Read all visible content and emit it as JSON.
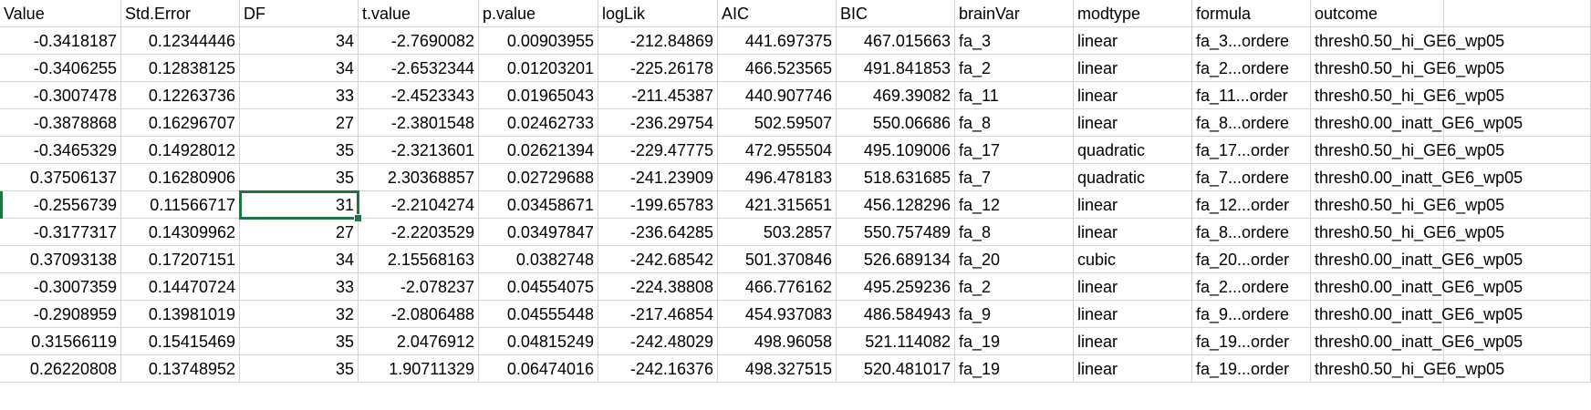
{
  "headers": [
    "Value",
    "Std.Error",
    "DF",
    "t.value",
    "p.value",
    "logLik",
    "AIC",
    "BIC",
    "brainVar",
    "modtype",
    "formula",
    "outcome",
    ""
  ],
  "rows": [
    [
      "-0.3418187",
      "0.12344446",
      "34",
      "-2.7690082",
      "0.00903955",
      "-212.84869",
      "441.697375",
      "467.015663",
      "fa_3",
      "linear",
      "fa_3...ordere",
      "thresh0.50_hi_GE6_wp05"
    ],
    [
      "-0.3406255",
      "0.12838125",
      "34",
      "-2.6532344",
      "0.01203201",
      "-225.26178",
      "466.523565",
      "491.841853",
      "fa_2",
      "linear",
      "fa_2...ordere",
      "thresh0.50_hi_GE6_wp05"
    ],
    [
      "-0.3007478",
      "0.12263736",
      "33",
      "-2.4523343",
      "0.01965043",
      "-211.45387",
      "440.907746",
      "469.39082",
      "fa_11",
      "linear",
      "fa_11...order",
      "thresh0.50_hi_GE6_wp05"
    ],
    [
      "-0.3878868",
      "0.16296707",
      "27",
      "-2.3801548",
      "0.02462733",
      "-236.29754",
      "502.59507",
      "550.06686",
      "fa_8",
      "linear",
      "fa_8...ordere",
      "thresh0.00_inatt_GE6_wp05"
    ],
    [
      "-0.3465329",
      "0.14928012",
      "35",
      "-2.3213601",
      "0.02621394",
      "-229.47775",
      "472.955504",
      "495.109006",
      "fa_17",
      "quadratic",
      "fa_17...order",
      "thresh0.50_hi_GE6_wp05"
    ],
    [
      "0.37506137",
      "0.16280906",
      "35",
      "2.30368857",
      "0.02729688",
      "-241.23909",
      "496.478183",
      "518.631685",
      "fa_7",
      "quadratic",
      "fa_7...ordere",
      "thresh0.00_inatt_GE6_wp05"
    ],
    [
      "-0.2556739",
      "0.11566717",
      "31",
      "-2.2104274",
      "0.03458671",
      "-199.65783",
      "421.315651",
      "456.128296",
      "fa_12",
      "linear",
      "fa_12...order",
      "thresh0.50_hi_GE6_wp05"
    ],
    [
      "-0.3177317",
      "0.14309962",
      "27",
      "-2.2203529",
      "0.03497847",
      "-236.64285",
      "503.2857",
      "550.757489",
      "fa_8",
      "linear",
      "fa_8...ordere",
      "thresh0.50_hi_GE6_wp05"
    ],
    [
      "0.37093138",
      "0.17207151",
      "34",
      "2.15568163",
      "0.0382748",
      "-242.68542",
      "501.370846",
      "526.689134",
      "fa_20",
      "cubic",
      "fa_20...order",
      "thresh0.00_inatt_GE6_wp05"
    ],
    [
      "-0.3007359",
      "0.14470724",
      "33",
      "-2.078237",
      "0.04554075",
      "-224.38808",
      "466.776162",
      "495.259236",
      "fa_2",
      "linear",
      "fa_2...ordere",
      "thresh0.00_inatt_GE6_wp05"
    ],
    [
      "-0.2908959",
      "0.13981019",
      "32",
      "-2.0806488",
      "0.04555448",
      "-217.46854",
      "454.937083",
      "486.584943",
      "fa_9",
      "linear",
      "fa_9...ordere",
      "thresh0.00_inatt_GE6_wp05"
    ],
    [
      "0.31566119",
      "0.15415469",
      "35",
      "2.0476912",
      "0.04815249",
      "-242.48029",
      "498.96058",
      "521.114082",
      "fa_19",
      "linear",
      "fa_19...order",
      "thresh0.00_inatt_GE6_wp05"
    ],
    [
      "0.26220808",
      "0.13748952",
      "35",
      "1.90711329",
      "0.06474016",
      "-242.16376",
      "498.327515",
      "520.481017",
      "fa_19",
      "linear",
      "fa_19...order",
      "thresh0.50_hi_GE6_wp05"
    ]
  ],
  "selected_cell": {
    "row": 6,
    "col": 2
  },
  "colors": {
    "gridline": "#d4d4d4",
    "selection": "#217346",
    "text": "#000000",
    "background": "#ffffff"
  }
}
